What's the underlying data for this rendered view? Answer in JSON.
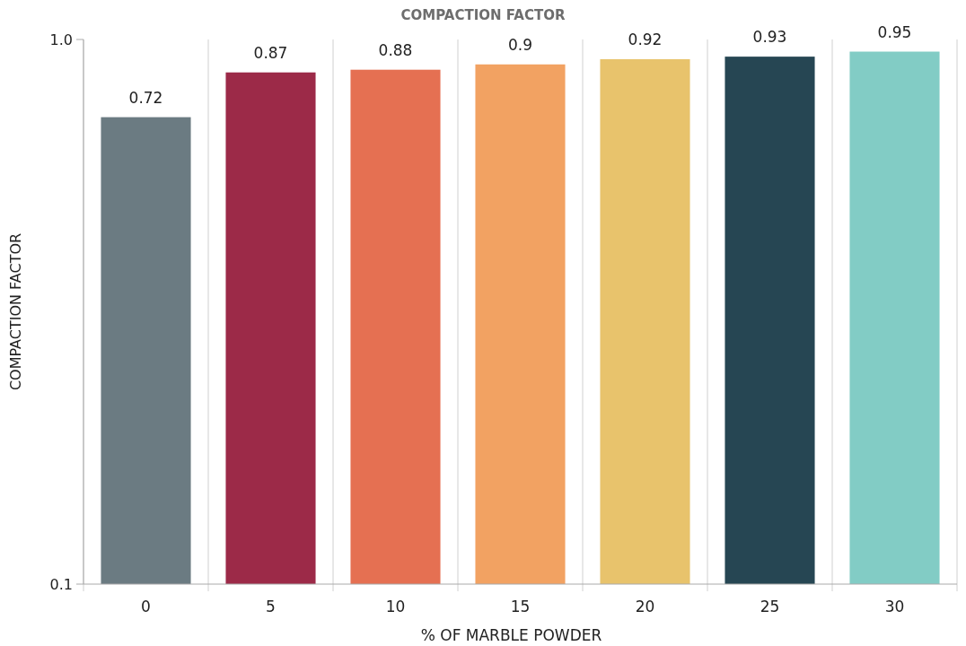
{
  "chart_data": {
    "type": "bar",
    "title": "COMPACTION FACTOR",
    "xlabel": "% OF MARBLE POWDER",
    "ylabel": "COMPACTION FACTOR",
    "categories": [
      "0",
      "5",
      "10",
      "15",
      "20",
      "25",
      "30"
    ],
    "values": [
      0.72,
      0.87,
      0.88,
      0.9,
      0.92,
      0.93,
      0.95
    ],
    "colors": [
      "#6b7b82",
      "#9c2a48",
      "#e57052",
      "#f2a262",
      "#e8c36c",
      "#264653",
      "#82ccc5"
    ],
    "log": true,
    "ylim": [
      0.1,
      1
    ],
    "yticks": [
      0.1,
      {
        "value": 1,
        "label": "1.0"
      }
    ],
    "grid": "x",
    "data_labels": true
  }
}
